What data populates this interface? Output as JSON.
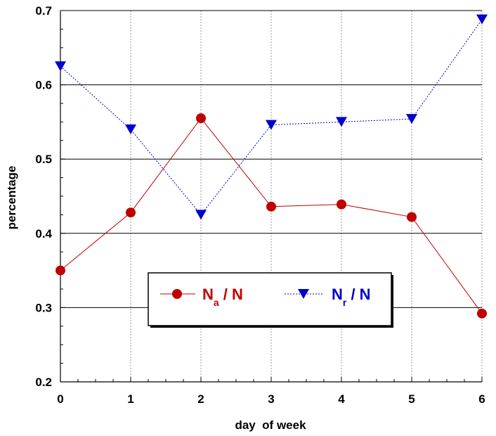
{
  "chart_data": {
    "type": "line",
    "xlabel": "day  of week",
    "ylabel": "percentage",
    "xlim": [
      0,
      6
    ],
    "ylim": [
      0.2,
      0.7
    ],
    "x_ticks": [
      "0",
      "1",
      "2",
      "3",
      "4",
      "5",
      "6"
    ],
    "y_ticks": [
      "0.2",
      "0.3",
      "0.4",
      "0.5",
      "0.6",
      "0.7"
    ],
    "x": [
      0,
      1,
      2,
      3,
      4,
      5,
      6
    ],
    "grid": {
      "horizontal": true,
      "vertical": true
    },
    "legend_position": "center-left",
    "series": [
      {
        "legend": {
          "main": "N",
          "sub": "a",
          "rest": " / N"
        },
        "values": [
          0.35,
          0.428,
          0.555,
          0.436,
          0.439,
          0.422,
          0.292
        ],
        "color": "#c00000",
        "marker": "circle",
        "line_style": "solid"
      },
      {
        "legend": {
          "main": "N",
          "sub": "r",
          "rest": " / N"
        },
        "values": [
          0.625,
          0.54,
          0.425,
          0.546,
          0.55,
          0.554,
          0.688
        ],
        "color": "#0000cc",
        "marker": "triangle-down",
        "line_style": "dotted"
      }
    ]
  }
}
